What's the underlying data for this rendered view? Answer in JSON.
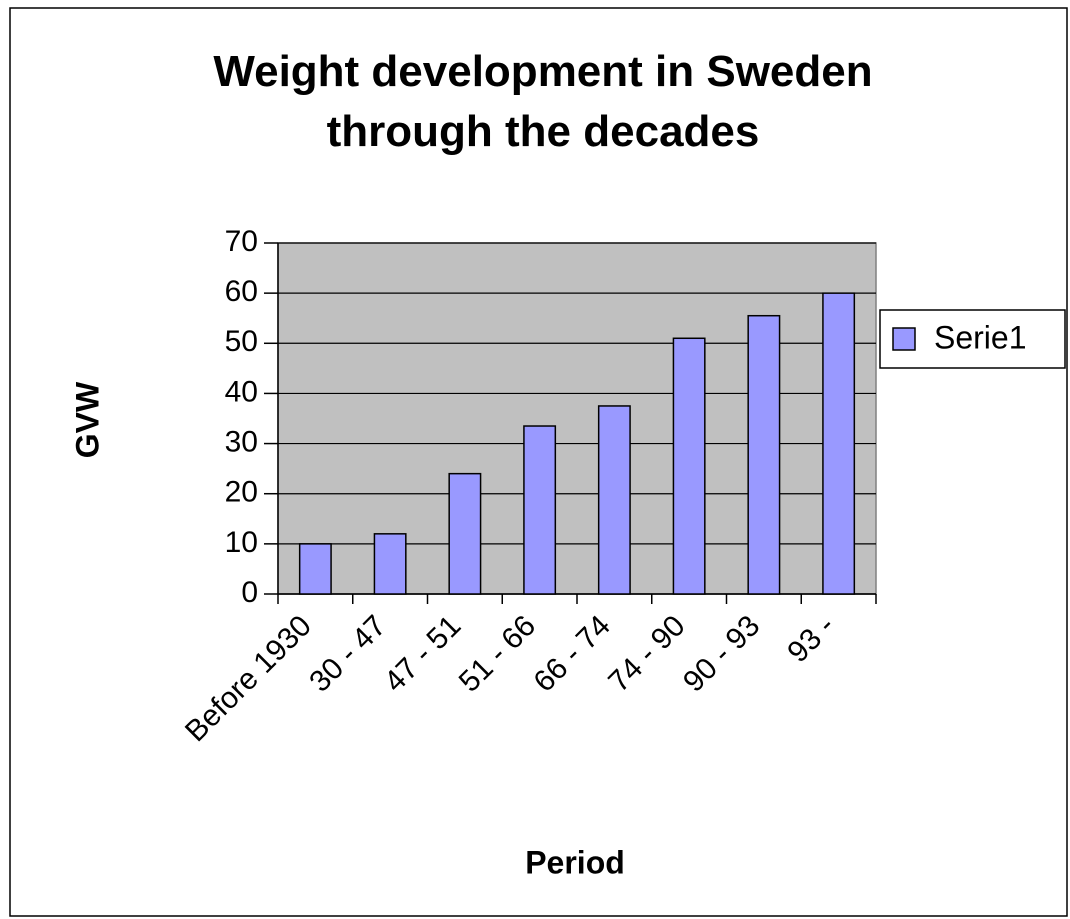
{
  "chart_data": {
    "type": "bar",
    "title": "Weight development in Sweden through the decades",
    "xlabel": "Period",
    "ylabel": "GVW",
    "categories": [
      "Before 1930",
      "30 - 47",
      "47 - 51",
      "51 - 66",
      "66 - 74",
      "74 - 90",
      "90 - 93",
      "93 -"
    ],
    "series": [
      {
        "name": "Serie1",
        "color": "#9999ff",
        "values": [
          10,
          12,
          24,
          33.5,
          37.5,
          51,
          55.5,
          60
        ]
      }
    ],
    "ylim": [
      0,
      70
    ],
    "yticks": [
      0,
      10,
      20,
      30,
      40,
      50,
      60,
      70
    ],
    "grid": true,
    "legend": "right"
  }
}
